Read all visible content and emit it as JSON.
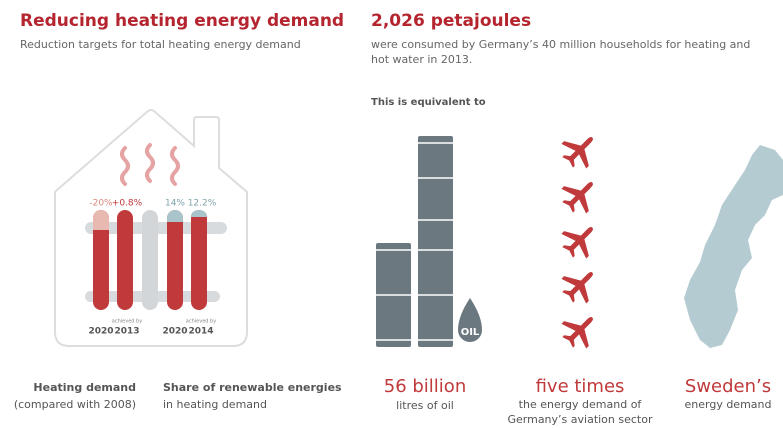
{
  "left": {
    "title": "Reducing heating energy demand",
    "subtitle": "Reduction targets for total heating energy demand",
    "radiator": {
      "labels": [
        "-20%",
        "+0.8%",
        "14%",
        "12.2%"
      ],
      "achieved": [
        "achieved by",
        "achieved by"
      ],
      "years": [
        "2020",
        "2013",
        "2020",
        "2014"
      ]
    },
    "captions": [
      {
        "title": "Heating demand",
        "text": "(compared with 2008)"
      },
      {
        "title": "Share of renewable energies",
        "text": "in heating demand"
      }
    ]
  },
  "right": {
    "title": "2,026 petajoules",
    "text": [
      "were consumed by Germany’s 40 million households for heating and",
      "hot water in 2013."
    ],
    "intro": "This is equivalent to",
    "oil_label": "OIL",
    "items": [
      {
        "headline": "56 billion",
        "text": [
          "litres of oil"
        ]
      },
      {
        "headline": "five times",
        "text": [
          "the energy demand of",
          "Germany’s aviation sector"
        ]
      },
      {
        "headline": "Sweden’s",
        "text": [
          "energy demand"
        ]
      }
    ]
  }
}
